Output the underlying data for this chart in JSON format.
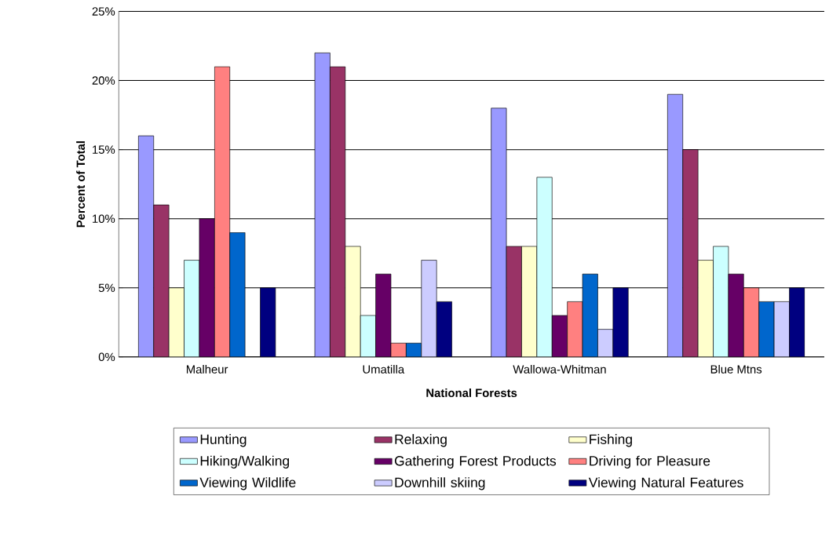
{
  "chart_data": {
    "type": "bar",
    "xlabel": "National Forests",
    "ylabel": "Percent of Total",
    "categories": [
      "Malheur",
      "Umatilla",
      "Wallowa-Whitman",
      "Blue Mtns"
    ],
    "series": [
      {
        "name": "Hunting",
        "color": "#9999ff",
        "values": [
          16,
          22,
          18,
          19
        ]
      },
      {
        "name": "Relaxing",
        "color": "#993366",
        "values": [
          11,
          21,
          8,
          15
        ]
      },
      {
        "name": "Fishing",
        "color": "#ffffcc",
        "values": [
          5,
          8,
          8,
          7
        ]
      },
      {
        "name": "Hiking/Walking",
        "color": "#ccffff",
        "values": [
          7,
          3,
          13,
          8
        ]
      },
      {
        "name": "Gathering Forest Products",
        "color": "#660066",
        "values": [
          10,
          6,
          3,
          6
        ]
      },
      {
        "name": "Driving for Pleasure",
        "color": "#ff8080",
        "values": [
          21,
          1,
          4,
          5
        ]
      },
      {
        "name": "Viewing Wildlife",
        "color": "#0066cc",
        "values": [
          9,
          1,
          6,
          4
        ]
      },
      {
        "name": "Downhill skiing",
        "color": "#ccccff",
        "values": [
          0,
          7,
          2,
          4
        ]
      },
      {
        "name": "Viewing Natural Features",
        "color": "#000080",
        "values": [
          5,
          4,
          5,
          5
        ]
      }
    ],
    "ylim": [
      0,
      25
    ],
    "yticks": [
      {
        "value": 0,
        "label": "0%"
      },
      {
        "value": 5,
        "label": "5%"
      },
      {
        "value": 10,
        "label": "10%"
      },
      {
        "value": 15,
        "label": "15%"
      },
      {
        "value": 20,
        "label": "20%"
      },
      {
        "value": 25,
        "label": "25%"
      }
    ],
    "grid": "y",
    "legend": "bottom"
  }
}
